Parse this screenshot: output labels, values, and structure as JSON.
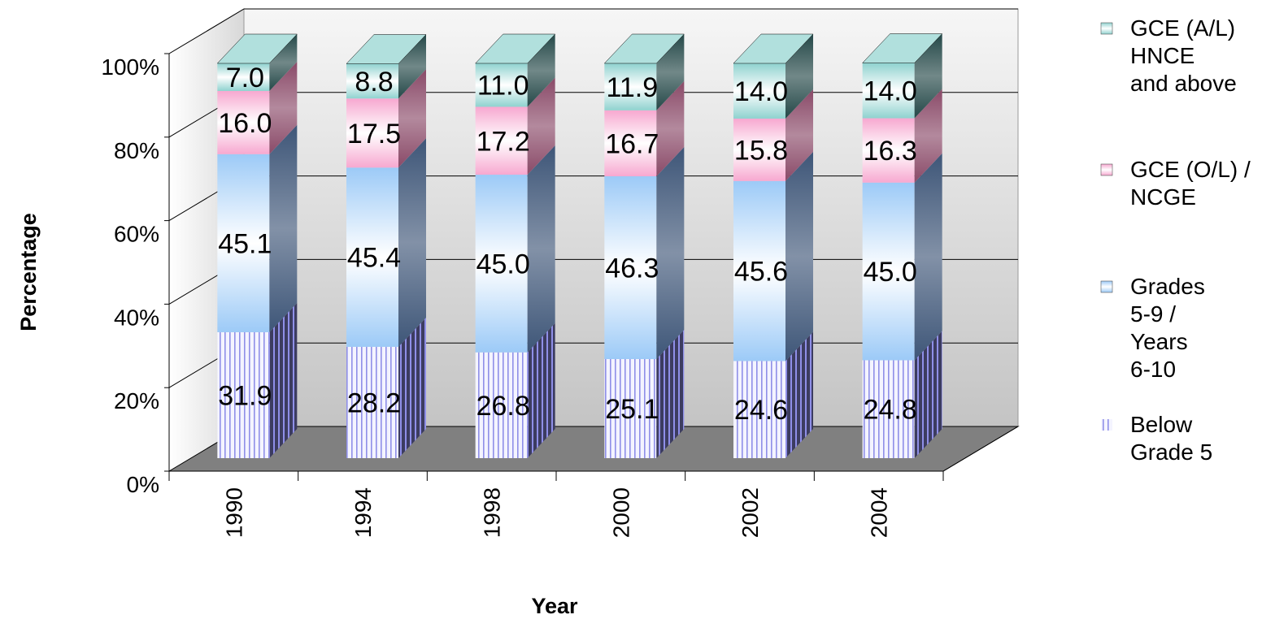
{
  "chart_data": {
    "type": "bar",
    "stacked": true,
    "percent_stacked": true,
    "three_d": true,
    "categories": [
      "1990",
      "1994",
      "1998",
      "2000",
      "2002",
      "2004"
    ],
    "series": [
      {
        "name": "Below Grade 5",
        "values": [
          31.9,
          28.2,
          26.8,
          25.1,
          24.6,
          24.8
        ],
        "labels": [
          "31.9",
          "28.2",
          "26.8",
          "25.1",
          "24.6",
          "24.8"
        ],
        "fill": "#f4f4ff",
        "stripe": "#8f8fe8",
        "legend_lines": [
          "Below",
          "Grade 5"
        ]
      },
      {
        "name": "Grades 5-9 / Years 6-10",
        "values": [
          45.1,
          45.4,
          45.0,
          46.3,
          45.6,
          45.0
        ],
        "labels": [
          "45.1",
          "45.4",
          "45.0",
          "46.3",
          "45.6",
          "45.0"
        ],
        "color": "#9ccaf7",
        "side": "#3e5678",
        "legend_lines": [
          "Grades",
          "5-9 /",
          "Years",
          "6-10"
        ]
      },
      {
        "name": "GCE (O/L) / NCGE",
        "values": [
          16.0,
          17.5,
          17.2,
          16.7,
          15.8,
          16.3
        ],
        "labels": [
          "16.0",
          "17.5",
          "17.2",
          "16.7",
          "15.8",
          "16.3"
        ],
        "color": "#f7a8d0",
        "side": "#8a4a68",
        "legend_lines": [
          "GCE (O/L) /",
          "NCGE"
        ]
      },
      {
        "name": "GCE (A/L) HNCE and above",
        "values": [
          7.0,
          8.8,
          11.0,
          11.9,
          14.0,
          14.0
        ],
        "labels": [
          "7.0",
          "8.8",
          "11.0",
          "11.9",
          "14.0",
          "14.0"
        ],
        "color": "#8fd2cf",
        "side": "#244848",
        "legend_lines": [
          "GCE (A/L)",
          "HNCE",
          "and above"
        ]
      }
    ],
    "xlabel": "Year",
    "ylabel": "Percentage",
    "ylim": [
      0,
      100
    ],
    "yticks": [
      "0%",
      "20%",
      "40%",
      "60%",
      "80%",
      "100%"
    ],
    "grid": true,
    "legend": "right"
  }
}
